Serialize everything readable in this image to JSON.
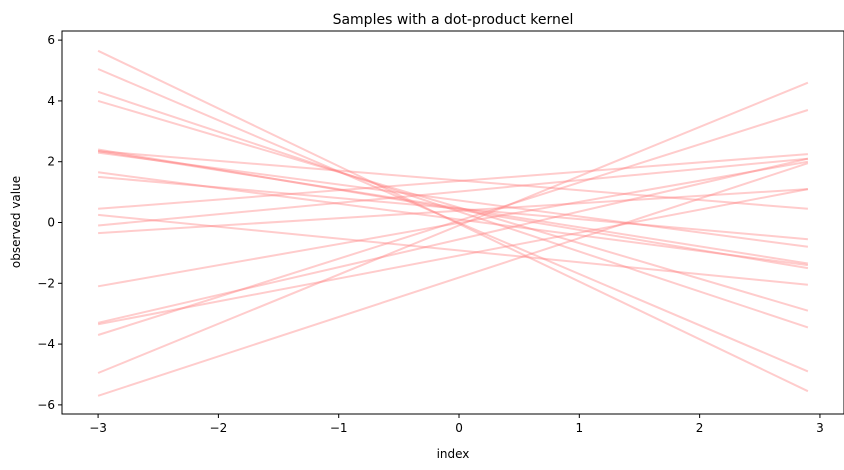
{
  "chart_data": {
    "type": "line",
    "title": "Samples with a dot-product kernel",
    "xlabel": "index",
    "ylabel": "observed value",
    "xlim": [
      -3.3,
      3.2
    ],
    "ylim": [
      -6.3,
      6.3
    ],
    "xticks": [
      "-3",
      "-2",
      "-1",
      "0",
      "1",
      "2",
      "3"
    ],
    "yticks": [
      "-6",
      "-4",
      "-2",
      "0",
      "2",
      "4",
      "6"
    ],
    "grid": false,
    "line_color": "#ff8080",
    "line_alpha": 0.4,
    "series": [
      {
        "x": [
          -3,
          2.9
        ],
        "y": [
          5.65,
          -5.55
        ]
      },
      {
        "x": [
          -3,
          2.9
        ],
        "y": [
          5.05,
          -4.9
        ]
      },
      {
        "x": [
          -3,
          2.9
        ],
        "y": [
          4.3,
          -3.45
        ]
      },
      {
        "x": [
          -3,
          2.9
        ],
        "y": [
          4.0,
          -2.9
        ]
      },
      {
        "x": [
          -3,
          2.9
        ],
        "y": [
          2.4,
          -1.5
        ]
      },
      {
        "x": [
          -3,
          2.9
        ],
        "y": [
          2.35,
          -1.35
        ]
      },
      {
        "x": [
          -3,
          2.9
        ],
        "y": [
          2.3,
          -0.8
        ]
      },
      {
        "x": [
          -3,
          2.9
        ],
        "y": [
          1.65,
          -1.4
        ]
      },
      {
        "x": [
          -3,
          2.9
        ],
        "y": [
          1.5,
          -0.55
        ]
      },
      {
        "x": [
          -3,
          2.9
        ],
        "y": [
          0.25,
          -2.05
        ]
      },
      {
        "x": [
          -3,
          2.9
        ],
        "y": [
          0.45,
          2.25
        ]
      },
      {
        "x": [
          -3,
          2.9
        ],
        "y": [
          -0.1,
          2.1
        ]
      },
      {
        "x": [
          -3,
          2.9
        ],
        "y": [
          -0.35,
          1.1
        ]
      },
      {
        "x": [
          -3,
          2.9
        ],
        "y": [
          -2.1,
          2.0
        ]
      },
      {
        "x": [
          -3,
          2.9
        ],
        "y": [
          -3.3,
          2.1
        ]
      },
      {
        "x": [
          -3,
          2.9
        ],
        "y": [
          -3.35,
          1.1
        ]
      },
      {
        "x": [
          -3,
          2.9
        ],
        "y": [
          -3.7,
          3.7
        ]
      },
      {
        "x": [
          -3,
          2.9
        ],
        "y": [
          -4.95,
          4.6
        ]
      },
      {
        "x": [
          -3,
          2.9
        ],
        "y": [
          -5.7,
          1.95
        ]
      },
      {
        "x": [
          -3,
          2.9
        ],
        "y": [
          2.35,
          0.45
        ]
      }
    ]
  }
}
